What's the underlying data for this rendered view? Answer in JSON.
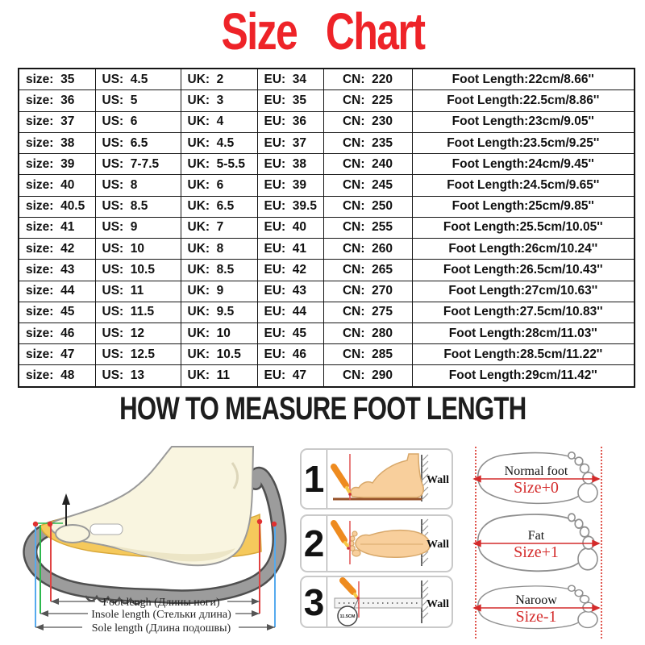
{
  "title": "Size  Chart",
  "measure_heading": "HOW TO MEASURE FOOT LENGTH",
  "table": {
    "columns": [
      "size",
      "US",
      "UK",
      "EU",
      "CN",
      "Foot Length"
    ],
    "rows": [
      [
        "size:  35",
        "US:  4.5",
        "UK:  2",
        "EU:  34",
        "CN:  220",
        "Foot Length:22cm/8.66''"
      ],
      [
        "size:  36",
        "US:  5",
        "UK:  3",
        "EU:  35",
        "CN:  225",
        "Foot Length:22.5cm/8.86''"
      ],
      [
        "size:  37",
        "US:  6",
        "UK:  4",
        "EU:  36",
        "CN:  230",
        "Foot Length:23cm/9.05''"
      ],
      [
        "size:  38",
        "US:  6.5",
        "UK:  4.5",
        "EU:  37",
        "CN:  235",
        "Foot Length:23.5cm/9.25''"
      ],
      [
        "size:  39",
        "US:  7-7.5",
        "UK:  5-5.5",
        "EU:  38",
        "CN:  240",
        "Foot Length:24cm/9.45''"
      ],
      [
        "size:  40",
        "US:  8",
        "UK:  6",
        "EU:  39",
        "CN:  245",
        "Foot Length:24.5cm/9.65''"
      ],
      [
        "size:  40.5",
        "US:  8.5",
        "UK:  6.5",
        "EU:  39.5",
        "CN:  250",
        "Foot Length:25cm/9.85''"
      ],
      [
        "size:  41",
        "US:  9",
        "UK:  7",
        "EU:  40",
        "CN:  255",
        "Foot Length:25.5cm/10.05''"
      ],
      [
        "size:  42",
        "US:  10",
        "UK:  8",
        "EU:  41",
        "CN:  260",
        "Foot Length:26cm/10.24''"
      ],
      [
        "size:  43",
        "US:  10.5",
        "UK:  8.5",
        "EU:  42",
        "CN:  265",
        "Foot Length:26.5cm/10.43''"
      ],
      [
        "size:  44",
        "US:  11",
        "UK:  9",
        "EU:  43",
        "CN:  270",
        "Foot Length:27cm/10.63''"
      ],
      [
        "size:  45",
        "US:  11.5",
        "UK:  9.5",
        "EU:  44",
        "CN:  275",
        "Foot Length:27.5cm/10.83''"
      ],
      [
        "size:  46",
        "US:  12",
        "UK:  10",
        "EU:  45",
        "CN:  280",
        "Foot Length:28cm/11.03''"
      ],
      [
        "size:  47",
        "US:  12.5",
        "UK:  10.5",
        "EU:  46",
        "CN:  285",
        "Foot Length:28.5cm/11.22''"
      ],
      [
        "size:  48",
        "US:  13",
        "UK:  11",
        "EU:  47",
        "CN:  290",
        "Foot Length:29cm/11.42''"
      ]
    ]
  },
  "shoe_diagram": {
    "foot_length_label": "Foot lengh (Длины ноги)",
    "insole_length_label": "Insole length (Стельки длина)",
    "sole_length_label": "Sole length (Длина подошвы)"
  },
  "steps": [
    {
      "number": "1",
      "wall_label": "Wall"
    },
    {
      "number": "2",
      "wall_label": "Wall"
    },
    {
      "number": "3",
      "wall_label": "Wall",
      "measurement_label": "11.5CM"
    }
  ],
  "foot_types": [
    {
      "name": "Normal foot",
      "size_label": "Size+0"
    },
    {
      "name": "Fat",
      "size_label": "Size+1"
    },
    {
      "name": "Naroow",
      "size_label": "Size-1"
    }
  ],
  "colors": {
    "title_red": "#ee2328",
    "size_label_red": "#d42b2b",
    "heading_black": "#1d1d1d",
    "measure_red": "#e04343",
    "measure_green": "#2db84d",
    "measure_blue": "#55aaee",
    "pencil_orange": "#ee8b1f",
    "insole_yellow": "#f5c95c",
    "shoe_gray": "#9c9c9c"
  }
}
